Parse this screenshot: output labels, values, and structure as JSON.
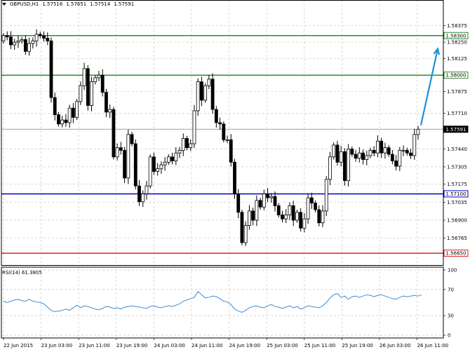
{
  "header": {
    "symbol": "GBPUSD,H1",
    "open": "1.57516",
    "high": "1.57651",
    "low": "1.57514",
    "close": "1.57591"
  },
  "rsi": {
    "label": "RSI(14) 61.3805"
  },
  "colors": {
    "resistance": "#2e8b2e",
    "support": "#0000cc",
    "bottom": "#e02020",
    "arrow": "#1e90d6",
    "rsi_line": "#3a8fd8",
    "grid": "#c8c8c8",
    "candle": "#000000"
  },
  "chart_data": [
    {
      "type": "candlestick",
      "title": "GBPUSD,H1",
      "ylim": [
        1.5656,
        1.5857
      ],
      "price_ticks": [
        "1.58375",
        "1.58250",
        "1.58125",
        "1.58000",
        "1.57875",
        "1.57710",
        "1.57591",
        "1.57440",
        "1.57305",
        "1.57175",
        "1.57035",
        "1.56900",
        "1.56765",
        "1.56650"
      ],
      "levels": [
        {
          "value": 1.583,
          "label": "1.58300",
          "role": "resistance"
        },
        {
          "value": 1.58,
          "label": "1.58000",
          "role": "resistance"
        },
        {
          "value": 1.5759,
          "label": "1.57591",
          "role": "current"
        },
        {
          "value": 1.571,
          "label": "1.57100",
          "role": "support"
        },
        {
          "value": 1.5665,
          "label": "1.56650",
          "role": "bottom"
        }
      ],
      "x_labels": [
        "22 Jun 2015",
        "23 Jun 03:00",
        "23 Jun 11:00",
        "23 Jun 19:00",
        "24 Jun 03:00",
        "24 Jun 11:00",
        "24 Jun 19:00",
        "25 Jun 03:00",
        "25 Jun 11:00",
        "25 Jun 19:00",
        "26 Jun 03:00",
        "26 Jun 11:00"
      ],
      "forecast_arrow": {
        "from": 1.5762,
        "to": 1.582
      },
      "closes": [
        1.583,
        1.5829,
        1.5823,
        1.5825,
        1.5826,
        1.5827,
        1.5818,
        1.5824,
        1.5826,
        1.5831,
        1.583,
        1.5828,
        1.5826,
        1.5783,
        1.577,
        1.5763,
        1.5766,
        1.5764,
        1.5775,
        1.5768,
        1.578,
        1.5792,
        1.5805,
        1.5777,
        1.5795,
        1.5798,
        1.58,
        1.5787,
        1.5772,
        1.5774,
        1.5738,
        1.5745,
        1.5743,
        1.5722,
        1.5755,
        1.5748,
        1.5716,
        1.5704,
        1.571,
        1.5716,
        1.5738,
        1.5727,
        1.5729,
        1.5732,
        1.5734,
        1.5738,
        1.5735,
        1.5741,
        1.5743,
        1.5752,
        1.5745,
        1.5748,
        1.5773,
        1.5795,
        1.5781,
        1.5792,
        1.5797,
        1.5774,
        1.5764,
        1.5763,
        1.5751,
        1.5751,
        1.5734,
        1.571,
        1.5696,
        1.5673,
        1.5686,
        1.5697,
        1.569,
        1.5705,
        1.57,
        1.571,
        1.5707,
        1.5708,
        1.5701,
        1.5694,
        1.5691,
        1.5694,
        1.5701,
        1.569,
        1.5696,
        1.5684,
        1.5691,
        1.5707,
        1.5703,
        1.5698,
        1.5688,
        1.5697,
        1.5721,
        1.5738,
        1.5747,
        1.5734,
        1.5742,
        1.572,
        1.5744,
        1.574,
        1.5737,
        1.5741,
        1.5736,
        1.5739,
        1.5743,
        1.5741,
        1.575,
        1.5741,
        1.5745,
        1.574,
        1.5735,
        1.5731,
        1.5743,
        1.5743,
        1.5741,
        1.5739,
        1.5755,
        1.5759
      ]
    },
    {
      "type": "line",
      "title": "RSI(14) 61.3805",
      "ylim": [
        0,
        100
      ],
      "y_ticks": [
        100,
        70,
        30,
        0
      ],
      "values": [
        52,
        50,
        52,
        54,
        55,
        53,
        52,
        55,
        52,
        51,
        50,
        48,
        43,
        38,
        36,
        37,
        38,
        40,
        38,
        42,
        46,
        42,
        45,
        44,
        42,
        40,
        39,
        41,
        44,
        43,
        41,
        42,
        40,
        43,
        44,
        45,
        44,
        43,
        42,
        41,
        44,
        45,
        43,
        42,
        44,
        45,
        44,
        46,
        48,
        52,
        54,
        56,
        58,
        67,
        62,
        57,
        58,
        60,
        59,
        56,
        52,
        51,
        47,
        40,
        37,
        35,
        38,
        42,
        44,
        45,
        43,
        42,
        45,
        47,
        44,
        43,
        41,
        43,
        45,
        42,
        44,
        40,
        42,
        45,
        44,
        43,
        42,
        45,
        50,
        57,
        62,
        64,
        58,
        60,
        55,
        59,
        60,
        58,
        60,
        62,
        61,
        59,
        61,
        62,
        60,
        58,
        56,
        55,
        58,
        60,
        59,
        60,
        61,
        60,
        62
      ]
    }
  ]
}
